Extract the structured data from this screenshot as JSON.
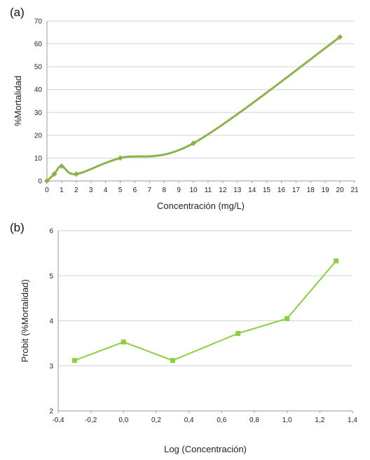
{
  "panels": [
    {
      "label": "(a)"
    },
    {
      "label": "(b)"
    }
  ],
  "chart_data": [
    {
      "type": "line",
      "title": "",
      "xlabel": "Concentración (mg/L)",
      "ylabel": "%Mortalidad",
      "xlim": [
        0,
        21
      ],
      "ylim": [
        0,
        70
      ],
      "xticks": [
        0,
        1,
        2,
        3,
        4,
        5,
        6,
        7,
        8,
        9,
        10,
        11,
        12,
        13,
        14,
        15,
        16,
        17,
        18,
        19,
        20,
        21
      ],
      "xtick_labels": [
        "0",
        "1",
        "2",
        "3",
        "4",
        "5",
        "6",
        "7",
        "8",
        "9",
        "10",
        "11",
        "12",
        "13",
        "14",
        "15",
        "16",
        "17",
        "18",
        "19",
        "20",
        "21"
      ],
      "yticks": [
        0,
        10,
        20,
        30,
        40,
        50,
        60,
        70
      ],
      "grid": "horizontal",
      "smooth": true,
      "marker": "diamond",
      "color": "#8cb34a",
      "series": [
        {
          "x": [
            0,
            0.5,
            1,
            2,
            5,
            10,
            20
          ],
          "y": [
            0,
            3,
            6.5,
            3,
            10,
            16.5,
            63
          ]
        }
      ]
    },
    {
      "type": "line",
      "title": "",
      "xlabel": "Log (Concentración)",
      "ylabel": "Probit (%Mortalidad)",
      "xlim": [
        -0.4,
        1.4
      ],
      "ylim": [
        2,
        6
      ],
      "xticks": [
        -0.4,
        -0.2,
        0.0,
        0.2,
        0.4,
        0.6,
        0.8,
        1.0,
        1.2,
        1.4
      ],
      "xtick_labels": [
        "-0,4",
        "-0,2",
        "0,0",
        "0,2",
        "0,4",
        "0,6",
        "0,8",
        "1,0",
        "1,2",
        "1,4"
      ],
      "yticks": [
        2,
        3,
        4,
        5,
        6
      ],
      "grid": "horizontal",
      "smooth": false,
      "marker": "square",
      "color": "#8ccf3c",
      "series": [
        {
          "x": [
            -0.3,
            0.0,
            0.3,
            0.7,
            1.0,
            1.3
          ],
          "y": [
            3.12,
            3.53,
            3.12,
            3.72,
            4.05,
            5.33
          ]
        }
      ]
    }
  ]
}
